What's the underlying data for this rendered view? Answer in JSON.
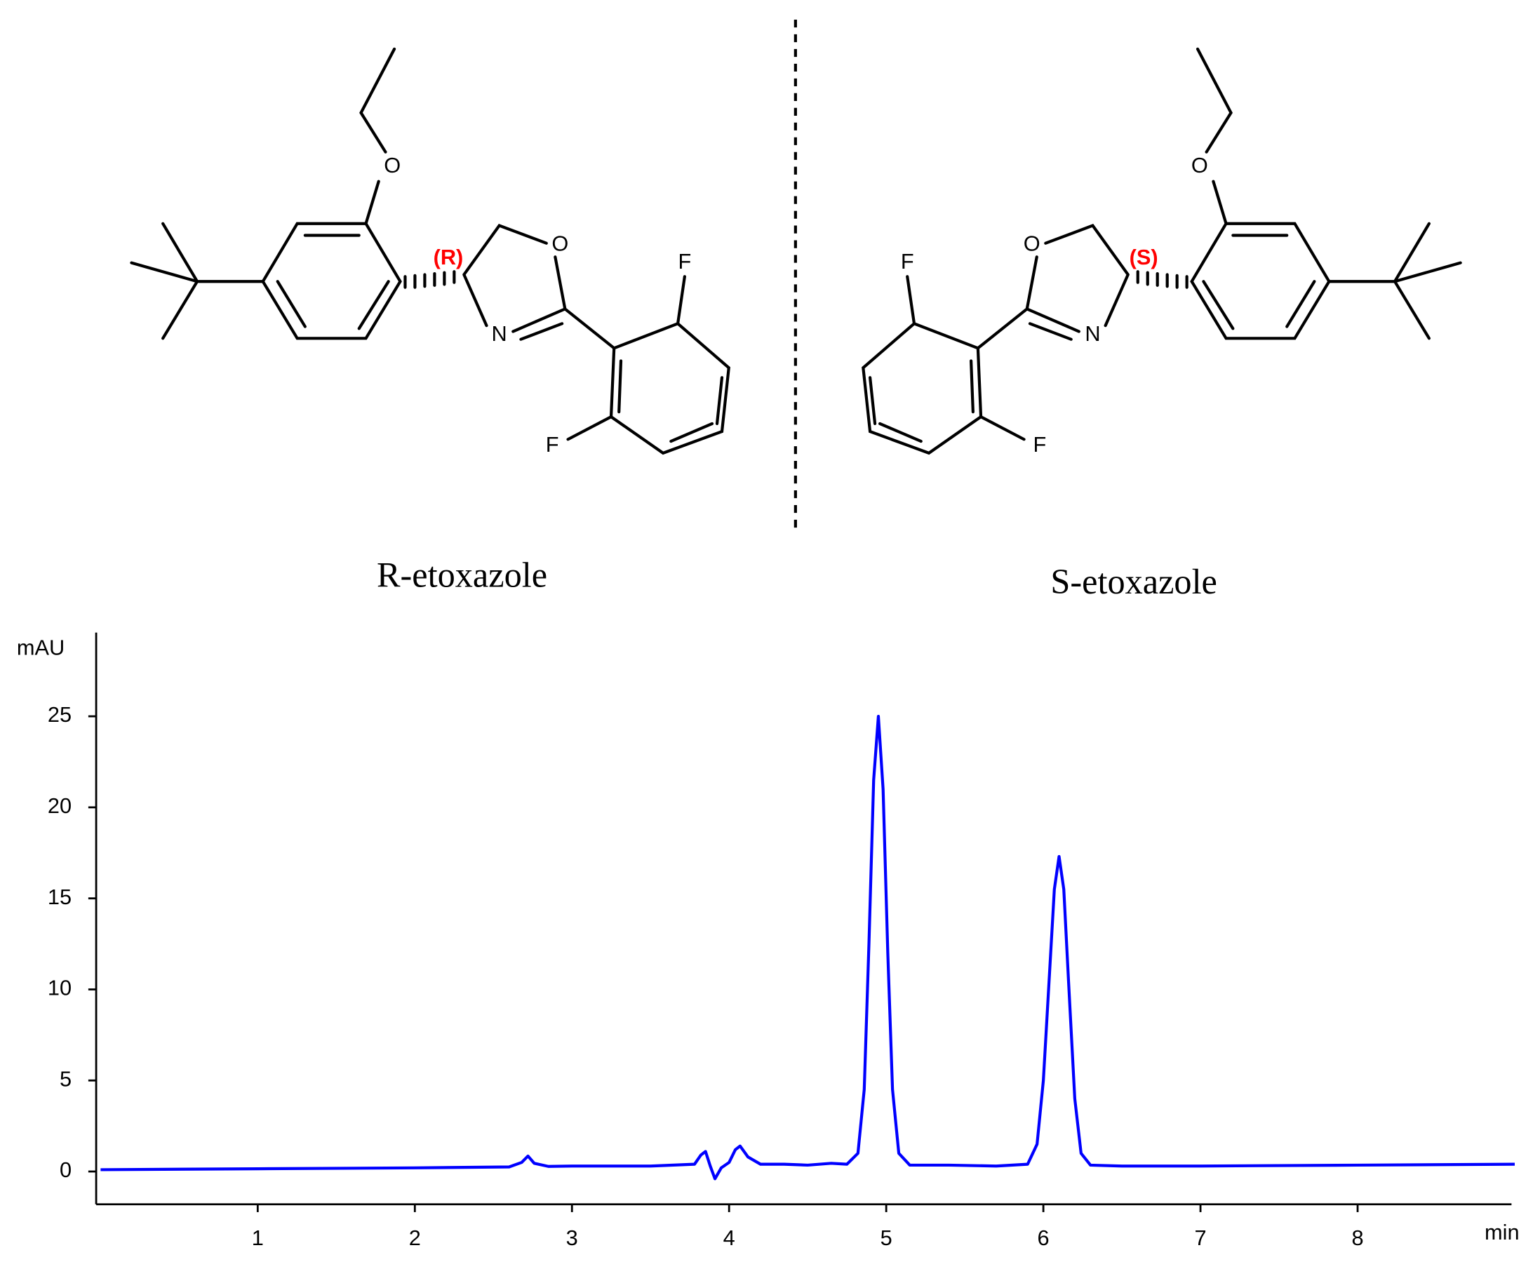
{
  "molecules": [
    {
      "name": "R-etoxazole",
      "stereo": "(R)",
      "atoms": [
        "O",
        "O",
        "N",
        "F",
        "F"
      ]
    },
    {
      "name": "S-etoxazole",
      "stereo": "(S)",
      "atoms": [
        "O",
        "O",
        "N",
        "F",
        "F"
      ]
    }
  ],
  "chart_data": {
    "type": "line",
    "y_label": "mAU",
    "x_label": "min",
    "color": "#0000ff",
    "x": [
      0,
      1,
      2,
      2.6,
      2.68,
      2.72,
      2.76,
      2.85,
      3,
      3.5,
      3.78,
      3.82,
      3.85,
      3.88,
      3.91,
      3.95,
      4.0,
      4.04,
      4.07,
      4.12,
      4.2,
      4.35,
      4.5,
      4.65,
      4.75,
      4.82,
      4.86,
      4.89,
      4.92,
      4.95,
      4.98,
      5.01,
      5.04,
      5.08,
      5.15,
      5.4,
      5.7,
      5.9,
      5.96,
      6.0,
      6.04,
      6.07,
      6.1,
      6.13,
      6.16,
      6.2,
      6.24,
      6.3,
      6.5,
      7,
      8,
      9
    ],
    "values": [
      0.1,
      0.15,
      0.2,
      0.25,
      0.5,
      0.85,
      0.45,
      0.28,
      0.3,
      0.3,
      0.4,
      0.9,
      1.1,
      0.3,
      -0.4,
      0.2,
      0.5,
      1.2,
      1.4,
      0.8,
      0.4,
      0.4,
      0.35,
      0.45,
      0.4,
      1.0,
      4.5,
      12.5,
      21.5,
      25,
      21,
      12,
      4.5,
      1.0,
      0.35,
      0.35,
      0.3,
      0.4,
      1.5,
      5,
      11,
      15.5,
      17.3,
      15.5,
      10.5,
      4,
      1.0,
      0.35,
      0.3,
      0.3,
      0.35,
      0.4
    ],
    "xlim": [
      0,
      9
    ],
    "ylim": [
      -1.8,
      29.6
    ],
    "xticks": [
      1,
      2,
      3,
      4,
      5,
      6,
      7,
      8
    ],
    "yticks": [
      0,
      5,
      10,
      15,
      20,
      25
    ]
  }
}
